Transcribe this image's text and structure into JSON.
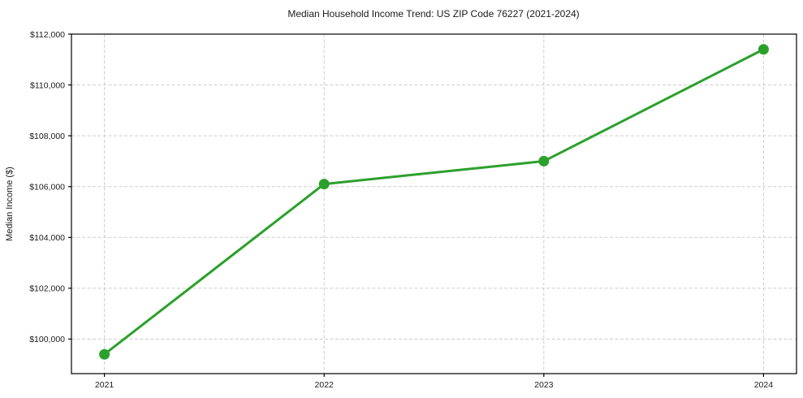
{
  "chart_data": {
    "type": "line",
    "title": "Median Household Income Trend: US ZIP Code 76227 (2021-2024)",
    "xlabel": "",
    "ylabel": "Median Income ($)",
    "categories": [
      "2021",
      "2022",
      "2023",
      "2024"
    ],
    "x": [
      2021,
      2022,
      2023,
      2024
    ],
    "series": [
      {
        "name": "Median Household Income",
        "values": [
          99400,
          106100,
          107000,
          111400
        ]
      }
    ],
    "yticks": [
      100000,
      102000,
      104000,
      106000,
      108000,
      110000,
      112000
    ],
    "ytick_labels": [
      "$100,000",
      "$102,000",
      "$104,000",
      "$106,000",
      "$108,000",
      "$110,000",
      "$112,000"
    ],
    "ylim": [
      98640,
      112000
    ],
    "xlim": [
      2020.85,
      2024.15
    ],
    "grid": "dashed",
    "legend_position": "none",
    "colors": {
      "line": "#2ca02c",
      "marker": "#2ca02c",
      "grid": "#cdcdcd",
      "spine": "#000000",
      "text": "#1a1a1a",
      "background": "#ffffff"
    }
  }
}
